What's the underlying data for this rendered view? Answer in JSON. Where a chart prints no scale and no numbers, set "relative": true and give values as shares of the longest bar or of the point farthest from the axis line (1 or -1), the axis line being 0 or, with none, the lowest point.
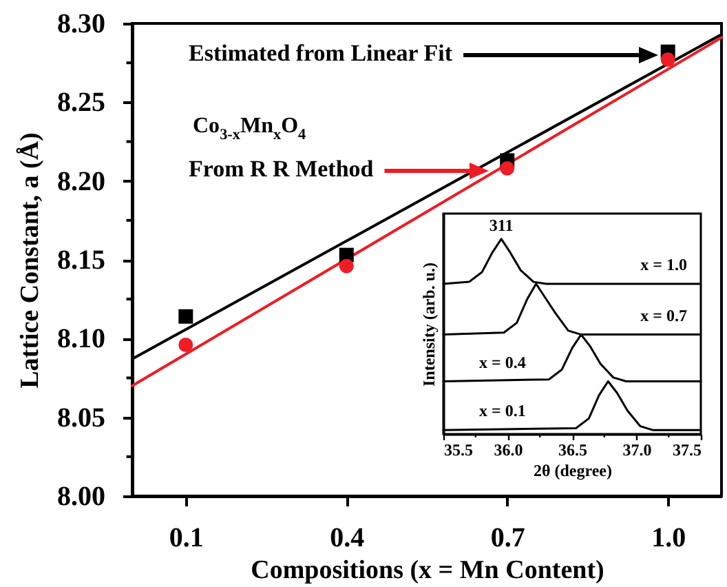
{
  "chart_data": [
    {
      "type": "scatter",
      "xlabel": "Compositions (x = Mn  Content)",
      "ylabel": "Lattice Constant, a (Å)",
      "xlim": [
        0,
        1.1
      ],
      "ylim": [
        8.0,
        8.3
      ],
      "xticks": [
        0.1,
        0.4,
        0.7,
        {
          "value": 1,
          "label": "1.0"
        }
      ],
      "yticks": [
        {
          "value": 8.0,
          "label": "8.00"
        },
        {
          "value": 8.025,
          "label": null
        },
        {
          "value": 8.05,
          "label": "8.05"
        },
        {
          "value": 8.075,
          "label": null
        },
        {
          "value": 8.1,
          "label": "8.10"
        },
        {
          "value": 8.125,
          "label": null
        },
        {
          "value": 8.15,
          "label": "8.15"
        },
        {
          "value": 8.175,
          "label": null
        },
        {
          "value": 8.2,
          "label": "8.20"
        },
        {
          "value": 8.225,
          "label": null
        },
        {
          "value": 8.25,
          "label": "8.25"
        },
        {
          "value": 8.275,
          "label": null
        },
        {
          "value": 8.3,
          "label": "8.30"
        }
      ],
      "annotations": [
        "Estimated from Linear Fit",
        "Co$_{3-x}$Mn$_{x}$O$_{4}$",
        "From R R Method"
      ],
      "series": [
        {
          "type": "line",
          "color": "#000000",
          "x": [
            0,
            1.1
          ],
          "values": [
            8.087,
            8.293
          ]
        },
        {
          "type": "line",
          "color": "#ee1c24",
          "x": [
            0,
            1.1
          ],
          "values": [
            8.07,
            8.291
          ]
        },
        {
          "marker": "square",
          "color": "#000000",
          "x": [
            0.1,
            0.4,
            0.7,
            1.0
          ],
          "values": [
            8.114,
            8.153,
            8.213,
            8.282
          ]
        },
        {
          "marker": "circle",
          "color": "#ee1c24",
          "x": [
            0.1,
            0.4,
            0.7,
            1.0
          ],
          "values": [
            8.096,
            8.146,
            8.208,
            8.277
          ]
        }
      ]
    },
    {
      "type": "line",
      "relative": true,
      "xlabel": "2θ (degree)",
      "ylabel": "Intensity (arb. u.)",
      "xlim": [
        35.5,
        37.5
      ],
      "xticks": [
        {
          "value": 35.5,
          "label": "35.5"
        },
        {
          "value": 35.75,
          "label": null
        },
        {
          "value": 36,
          "label": "36.0"
        },
        {
          "value": 36.25,
          "label": null
        },
        {
          "value": 36.5,
          "label": "36.5"
        },
        {
          "value": 36.75,
          "label": null
        },
        {
          "value": 37,
          "label": "37.0"
        },
        {
          "value": 37.25,
          "label": null
        },
        {
          "value": 37.5,
          "label": "37.5"
        }
      ],
      "annotations": [
        {
          "text": "311",
          "x": 35.95,
          "y": 1.0
        }
      ],
      "series": [
        {
          "name": "x = 1.0",
          "color": "#000000",
          "x": [
            35.5,
            35.7,
            35.8,
            35.88,
            35.95,
            36.02,
            36.1,
            36.2,
            36.3,
            37.5
          ],
          "values": [
            0.77,
            0.78,
            0.83,
            0.93,
            1.0,
            0.93,
            0.84,
            0.78,
            0.77,
            0.77
          ]
        },
        {
          "name": "x = 0.7",
          "color": "#000000",
          "x": [
            35.5,
            35.97,
            36.07,
            36.15,
            36.22,
            36.29,
            36.37,
            36.47,
            36.57,
            37.5
          ],
          "values": [
            0.51,
            0.52,
            0.57,
            0.69,
            0.77,
            0.7,
            0.62,
            0.53,
            0.51,
            0.51
          ]
        },
        {
          "name": "x = 0.4",
          "color": "#000000",
          "x": [
            35.5,
            36.32,
            36.42,
            36.5,
            36.57,
            36.64,
            36.72,
            36.82,
            36.92,
            37.5
          ],
          "values": [
            0.27,
            0.28,
            0.33,
            0.44,
            0.51,
            0.45,
            0.36,
            0.29,
            0.27,
            0.27
          ]
        },
        {
          "name": "x = 0.1",
          "color": "#000000",
          "x": [
            35.5,
            36.53,
            36.63,
            36.71,
            36.78,
            36.85,
            36.93,
            37.03,
            37.13,
            37.5
          ],
          "values": [
            0.02,
            0.03,
            0.08,
            0.2,
            0.27,
            0.21,
            0.12,
            0.04,
            0.02,
            0.02
          ]
        }
      ]
    }
  ]
}
